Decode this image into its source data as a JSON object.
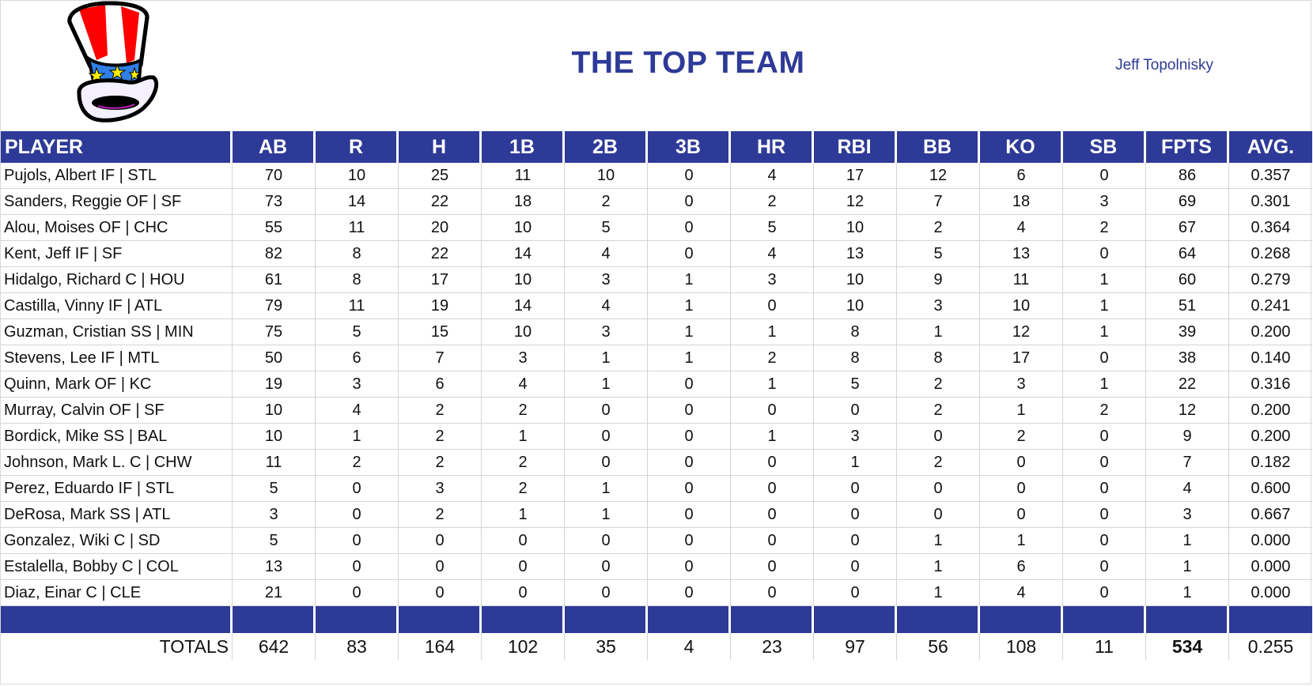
{
  "header": {
    "title": "THE TOP TEAM",
    "owner": "Jeff Topolnisky",
    "logo_icon": "uncle-sam-top-hat-icon"
  },
  "colors": {
    "header_band": "#2e3a97",
    "title_text": "#2e3a97",
    "grid_line": "#d4d4d4"
  },
  "table": {
    "columns": [
      "PLAYER",
      "AB",
      "R",
      "H",
      "1B",
      "2B",
      "3B",
      "HR",
      "RBI",
      "BB",
      "KO",
      "SB",
      "FPTS",
      "AVG."
    ],
    "rows": [
      {
        "player": "Pujols, Albert IF | STL",
        "ab": "70",
        "r": "10",
        "h": "25",
        "b1": "11",
        "b2": "10",
        "b3": "0",
        "hr": "4",
        "rbi": "17",
        "bb": "12",
        "ko": "6",
        "sb": "0",
        "fpts": "86",
        "avg": "0.357"
      },
      {
        "player": "Sanders, Reggie OF | SF",
        "ab": "73",
        "r": "14",
        "h": "22",
        "b1": "18",
        "b2": "2",
        "b3": "0",
        "hr": "2",
        "rbi": "12",
        "bb": "7",
        "ko": "18",
        "sb": "3",
        "fpts": "69",
        "avg": "0.301"
      },
      {
        "player": "Alou, Moises OF | CHC",
        "ab": "55",
        "r": "11",
        "h": "20",
        "b1": "10",
        "b2": "5",
        "b3": "0",
        "hr": "5",
        "rbi": "10",
        "bb": "2",
        "ko": "4",
        "sb": "2",
        "fpts": "67",
        "avg": "0.364"
      },
      {
        "player": "Kent, Jeff IF | SF",
        "ab": "82",
        "r": "8",
        "h": "22",
        "b1": "14",
        "b2": "4",
        "b3": "0",
        "hr": "4",
        "rbi": "13",
        "bb": "5",
        "ko": "13",
        "sb": "0",
        "fpts": "64",
        "avg": "0.268"
      },
      {
        "player": "Hidalgo, Richard C | HOU",
        "ab": "61",
        "r": "8",
        "h": "17",
        "b1": "10",
        "b2": "3",
        "b3": "1",
        "hr": "3",
        "rbi": "10",
        "bb": "9",
        "ko": "11",
        "sb": "1",
        "fpts": "60",
        "avg": "0.279"
      },
      {
        "player": "Castilla, Vinny IF | ATL",
        "ab": "79",
        "r": "11",
        "h": "19",
        "b1": "14",
        "b2": "4",
        "b3": "1",
        "hr": "0",
        "rbi": "10",
        "bb": "3",
        "ko": "10",
        "sb": "1",
        "fpts": "51",
        "avg": "0.241"
      },
      {
        "player": "Guzman, Cristian SS | MIN",
        "ab": "75",
        "r": "5",
        "h": "15",
        "b1": "10",
        "b2": "3",
        "b3": "1",
        "hr": "1",
        "rbi": "8",
        "bb": "1",
        "ko": "12",
        "sb": "1",
        "fpts": "39",
        "avg": "0.200"
      },
      {
        "player": "Stevens, Lee IF | MTL",
        "ab": "50",
        "r": "6",
        "h": "7",
        "b1": "3",
        "b2": "1",
        "b3": "1",
        "hr": "2",
        "rbi": "8",
        "bb": "8",
        "ko": "17",
        "sb": "0",
        "fpts": "38",
        "avg": "0.140"
      },
      {
        "player": "Quinn, Mark OF | KC",
        "ab": "19",
        "r": "3",
        "h": "6",
        "b1": "4",
        "b2": "1",
        "b3": "0",
        "hr": "1",
        "rbi": "5",
        "bb": "2",
        "ko": "3",
        "sb": "1",
        "fpts": "22",
        "avg": "0.316"
      },
      {
        "player": "Murray, Calvin OF | SF",
        "ab": "10",
        "r": "4",
        "h": "2",
        "b1": "2",
        "b2": "0",
        "b3": "0",
        "hr": "0",
        "rbi": "0",
        "bb": "2",
        "ko": "1",
        "sb": "2",
        "fpts": "12",
        "avg": "0.200"
      },
      {
        "player": "Bordick, Mike SS | BAL",
        "ab": "10",
        "r": "1",
        "h": "2",
        "b1": "1",
        "b2": "0",
        "b3": "0",
        "hr": "1",
        "rbi": "3",
        "bb": "0",
        "ko": "2",
        "sb": "0",
        "fpts": "9",
        "avg": "0.200"
      },
      {
        "player": "Johnson, Mark L. C | CHW",
        "ab": "11",
        "r": "2",
        "h": "2",
        "b1": "2",
        "b2": "0",
        "b3": "0",
        "hr": "0",
        "rbi": "1",
        "bb": "2",
        "ko": "0",
        "sb": "0",
        "fpts": "7",
        "avg": "0.182"
      },
      {
        "player": "Perez, Eduardo IF | STL",
        "ab": "5",
        "r": "0",
        "h": "3",
        "b1": "2",
        "b2": "1",
        "b3": "0",
        "hr": "0",
        "rbi": "0",
        "bb": "0",
        "ko": "0",
        "sb": "0",
        "fpts": "4",
        "avg": "0.600"
      },
      {
        "player": "DeRosa, Mark SS | ATL",
        "ab": "3",
        "r": "0",
        "h": "2",
        "b1": "1",
        "b2": "1",
        "b3": "0",
        "hr": "0",
        "rbi": "0",
        "bb": "0",
        "ko": "0",
        "sb": "0",
        "fpts": "3",
        "avg": "0.667"
      },
      {
        "player": "Gonzalez, Wiki C | SD",
        "ab": "5",
        "r": "0",
        "h": "0",
        "b1": "0",
        "b2": "0",
        "b3": "0",
        "hr": "0",
        "rbi": "0",
        "bb": "1",
        "ko": "1",
        "sb": "0",
        "fpts": "1",
        "avg": "0.000"
      },
      {
        "player": "Estalella, Bobby C | COL",
        "ab": "13",
        "r": "0",
        "h": "0",
        "b1": "0",
        "b2": "0",
        "b3": "0",
        "hr": "0",
        "rbi": "0",
        "bb": "1",
        "ko": "6",
        "sb": "0",
        "fpts": "1",
        "avg": "0.000"
      },
      {
        "player": "Diaz, Einar C | CLE",
        "ab": "21",
        "r": "0",
        "h": "0",
        "b1": "0",
        "b2": "0",
        "b3": "0",
        "hr": "0",
        "rbi": "0",
        "bb": "1",
        "ko": "4",
        "sb": "0",
        "fpts": "1",
        "avg": "0.000"
      }
    ],
    "totals": {
      "label": "TOTALS",
      "ab": "642",
      "r": "83",
      "h": "164",
      "b1": "102",
      "b2": "35",
      "b3": "4",
      "hr": "23",
      "rbi": "97",
      "bb": "56",
      "ko": "108",
      "sb": "11",
      "fpts": "534",
      "avg": "0.255"
    }
  }
}
